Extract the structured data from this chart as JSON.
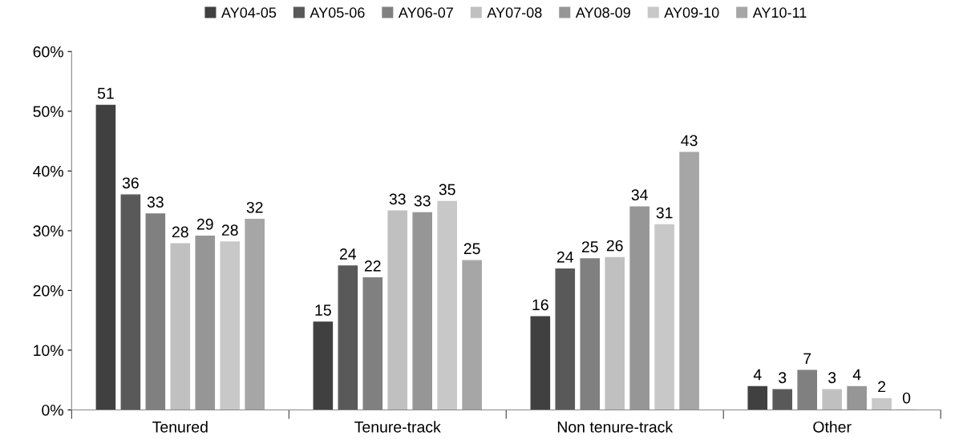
{
  "chart_data": {
    "type": "bar",
    "categories": [
      "Tenured",
      "Tenure-track",
      "Non tenure-track",
      "Other"
    ],
    "series": [
      {
        "name": "AY04-05",
        "color": "#404040",
        "values": [
          51.0,
          14.7,
          15.6,
          3.9
        ],
        "value_labels": [
          "51",
          "15",
          "16",
          "4"
        ]
      },
      {
        "name": "AY05-06",
        "color": "#595959",
        "values": [
          36.0,
          24.1,
          23.6,
          3.4
        ],
        "value_labels": [
          "36",
          "24",
          "24",
          "3"
        ]
      },
      {
        "name": "AY06-07",
        "color": "#808080",
        "values": [
          32.8,
          22.1,
          25.3,
          6.6
        ],
        "value_labels": [
          "33",
          "22",
          "25",
          "7"
        ]
      },
      {
        "name": "AY07-08",
        "color": "#c0c0c0",
        "values": [
          27.8,
          33.3,
          25.5,
          3.4
        ],
        "value_labels": [
          "28",
          "33",
          "26",
          "3"
        ]
      },
      {
        "name": "AY08-09",
        "color": "#969696",
        "values": [
          29.1,
          33.0,
          34.0,
          3.9
        ],
        "value_labels": [
          "29",
          "33",
          "34",
          "4"
        ]
      },
      {
        "name": "AY09-10",
        "color": "#c8c8c8",
        "values": [
          28.1,
          34.9,
          31.0,
          1.9
        ],
        "value_labels": [
          "28",
          "35",
          "31",
          "2"
        ]
      },
      {
        "name": "AY10-11",
        "color": "#a6a6a6",
        "values": [
          31.9,
          25.0,
          43.1,
          0.0
        ],
        "value_labels": [
          "32",
          "25",
          "43",
          "0"
        ]
      }
    ],
    "ylim": [
      0,
      60
    ],
    "yticks": [
      {
        "value": 0,
        "label": "0%"
      },
      {
        "value": 10,
        "label": "10%"
      },
      {
        "value": 20,
        "label": "20%"
      },
      {
        "value": 30,
        "label": "30%"
      },
      {
        "value": 40,
        "label": "40%"
      },
      {
        "value": 50,
        "label": "50%"
      },
      {
        "value": 60,
        "label": "60%"
      }
    ],
    "grid": false,
    "legend": "top"
  }
}
